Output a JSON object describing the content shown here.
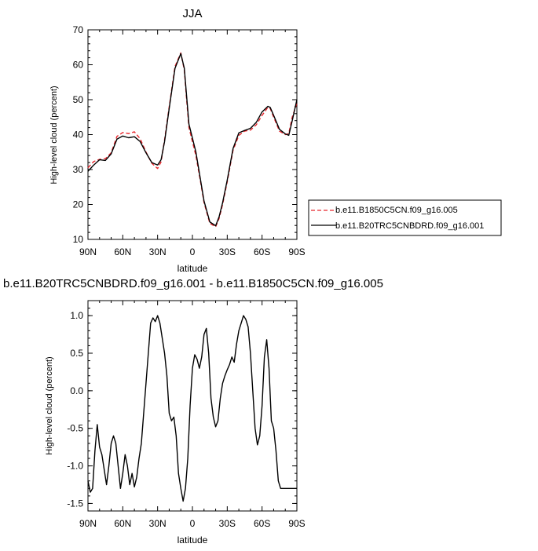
{
  "colors": {
    "control": "#e8262c",
    "experiment": "#000000",
    "axis": "#000000",
    "background": "#ffffff"
  },
  "chart_data": [
    {
      "type": "line",
      "title": "JJA",
      "xlabel": "latitude",
      "ylabel": "High-level cloud (percent)",
      "xlim": [
        -90,
        90
      ],
      "ylim": [
        10,
        70
      ],
      "x_ticks": [
        -90,
        -60,
        -30,
        0,
        30,
        60,
        90
      ],
      "x_tick_labels": [
        "90N",
        "60N",
        "30N",
        "0",
        "30S",
        "60S",
        "90S"
      ],
      "y_ticks": [
        10,
        20,
        30,
        40,
        50,
        60,
        70
      ],
      "y_tick_labels": [
        "10",
        "20",
        "30",
        "40",
        "50",
        "60",
        "70"
      ],
      "grid": false,
      "legend_position": "right",
      "series": [
        {
          "name": "b.e11.B1850C5CN.f09_g16.005",
          "style": "dashed",
          "color": "#e8262c",
          "x": [
            -90,
            -85,
            -80,
            -75,
            -70,
            -65,
            -60,
            -55,
            -50,
            -45,
            -40,
            -35,
            -30,
            -27,
            -24,
            -20,
            -15,
            -10,
            -7,
            -5,
            -3,
            0,
            3,
            7,
            10,
            15,
            20,
            23,
            26,
            30,
            35,
            40,
            45,
            50,
            55,
            60,
            65,
            67,
            70,
            75,
            80,
            83,
            86,
            90
          ],
          "y": [
            30.5,
            32.3,
            32.9,
            33.1,
            34.8,
            39.5,
            40.6,
            40.3,
            40.8,
            38.8,
            35.0,
            31.8,
            30.3,
            32.2,
            38.5,
            48.0,
            59.5,
            63.4,
            58.5,
            50.0,
            42.0,
            38.0,
            34.0,
            26.5,
            20.5,
            14.6,
            13.6,
            16.0,
            20.0,
            26.5,
            35.5,
            39.8,
            41.0,
            41.3,
            42.8,
            45.5,
            47.8,
            47.5,
            45.0,
            41.0,
            40.0,
            40.3,
            45.0,
            49.0
          ]
        },
        {
          "name": "b.e11.B20TRC5CNBDRD.f09_g16.001",
          "style": "solid",
          "color": "#000000",
          "x": [
            -90,
            -85,
            -80,
            -75,
            -70,
            -65,
            -60,
            -55,
            -50,
            -45,
            -40,
            -35,
            -30,
            -27,
            -24,
            -20,
            -15,
            -10,
            -7,
            -5,
            -3,
            0,
            3,
            7,
            10,
            15,
            20,
            23,
            26,
            30,
            35,
            40,
            45,
            50,
            55,
            60,
            65,
            67,
            70,
            75,
            80,
            83,
            86,
            90
          ],
          "y": [
            29.5,
            31.3,
            32.8,
            32.6,
            34.5,
            38.7,
            39.6,
            39.1,
            39.4,
            38.0,
            34.8,
            32.0,
            31.3,
            32.8,
            38.0,
            47.5,
            59.0,
            63.2,
            59.0,
            51.0,
            43.0,
            39.0,
            35.0,
            27.0,
            21.0,
            15.0,
            13.9,
            16.5,
            20.5,
            27.0,
            36.0,
            40.5,
            41.2,
            41.8,
            43.5,
            46.5,
            48.1,
            47.8,
            45.5,
            41.5,
            40.2,
            39.8,
            44.0,
            50.0
          ]
        }
      ]
    },
    {
      "type": "line",
      "title": "b.e11.B20TRC5CNBDRD.f09_g16.001 - b.e11.B1850C5CN.f09_g16.005",
      "xlabel": "latitude",
      "ylabel": "High-level cloud (percent)",
      "xlim": [
        -90,
        90
      ],
      "ylim": [
        -1.6,
        1.2
      ],
      "x_ticks": [
        -90,
        -60,
        -30,
        0,
        30,
        60,
        90
      ],
      "x_tick_labels": [
        "90N",
        "60N",
        "30N",
        "0",
        "30S",
        "60S",
        "90S"
      ],
      "y_ticks": [
        -1.5,
        -1.0,
        -0.5,
        0.0,
        0.5,
        1.0
      ],
      "y_tick_labels": [
        "-1.5",
        "-1.0",
        "-0.5",
        "0.0",
        "0.5",
        "1.0"
      ],
      "grid": false,
      "series": [
        {
          "style": "solid",
          "color": "#000000",
          "x": [
            -90,
            -88,
            -86,
            -84,
            -82,
            -80,
            -78,
            -76,
            -74,
            -72,
            -70,
            -68,
            -66,
            -64,
            -62,
            -60,
            -58,
            -56,
            -54,
            -52,
            -50,
            -48,
            -46,
            -44,
            -42,
            -40,
            -38,
            -36,
            -34,
            -32,
            -30,
            -28,
            -26,
            -24,
            -22,
            -20,
            -18,
            -16,
            -14,
            -12,
            -10,
            -8,
            -6,
            -4,
            -2,
            0,
            2,
            4,
            6,
            8,
            10,
            12,
            14,
            16,
            18,
            20,
            22,
            24,
            26,
            28,
            30,
            32,
            34,
            36,
            38,
            40,
            42,
            44,
            46,
            48,
            50,
            52,
            54,
            56,
            58,
            60,
            62,
            64,
            66,
            68,
            70,
            72,
            74,
            76,
            78,
            80,
            82,
            84,
            86,
            88,
            90
          ],
          "y": [
            -1.2,
            -1.35,
            -1.3,
            -0.8,
            -0.45,
            -0.75,
            -0.85,
            -1.05,
            -1.25,
            -1.0,
            -0.7,
            -0.6,
            -0.7,
            -1.0,
            -1.3,
            -1.1,
            -0.85,
            -1.0,
            -1.25,
            -1.1,
            -1.28,
            -1.15,
            -0.9,
            -0.7,
            -0.3,
            0.1,
            0.5,
            0.9,
            0.97,
            0.92,
            1.0,
            0.9,
            0.7,
            0.5,
            0.2,
            -0.3,
            -0.4,
            -0.35,
            -0.6,
            -1.1,
            -1.3,
            -1.47,
            -1.3,
            -0.9,
            -0.2,
            0.3,
            0.48,
            0.42,
            0.3,
            0.45,
            0.75,
            0.83,
            0.5,
            -0.1,
            -0.35,
            -0.48,
            -0.4,
            -0.1,
            0.1,
            0.2,
            0.28,
            0.35,
            0.45,
            0.38,
            0.62,
            0.8,
            0.9,
            1.0,
            0.95,
            0.85,
            0.5,
            0.0,
            -0.5,
            -0.72,
            -0.6,
            -0.2,
            0.45,
            0.68,
            0.3,
            -0.4,
            -0.5,
            -0.8,
            -1.2,
            -1.3,
            -1.3,
            -1.3,
            -1.3,
            -1.3,
            -1.3,
            -1.3,
            -1.3
          ]
        }
      ]
    }
  ]
}
